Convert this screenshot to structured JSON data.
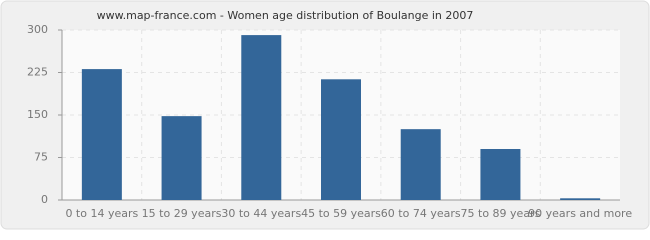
{
  "chart_data": {
    "type": "bar",
    "title": "www.map-france.com - Women age distribution of Boulange in 2007",
    "categories": [
      "0 to 14 years",
      "15 to 29 years",
      "30 to 44 years",
      "45 to 59 years",
      "60 to 74 years",
      "75 to 89 years",
      "90 years and more"
    ],
    "values": [
      231,
      148,
      291,
      213,
      125,
      90,
      3
    ],
    "color": "#336699",
    "ylim": [
      0,
      300
    ],
    "yticks": [
      0,
      75,
      150,
      225,
      300
    ],
    "grid": true
  }
}
